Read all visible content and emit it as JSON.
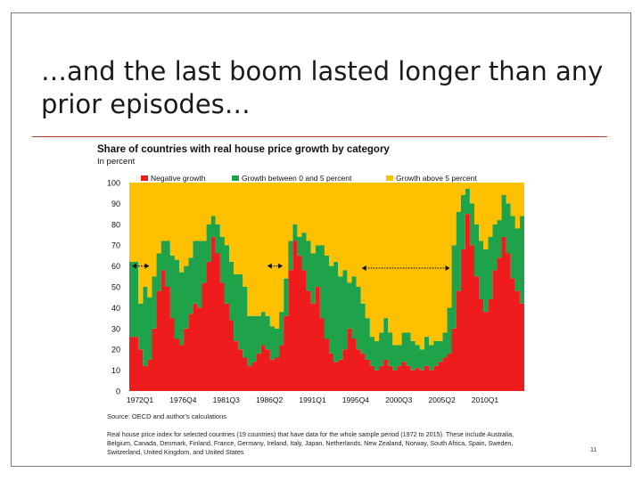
{
  "slide": {
    "title": "…and the last boom lasted longer than any prior episodes…",
    "page_number": "11",
    "source": "Source: OECD and author's calculations",
    "note": "Real house price index for selected countries (19 countries) that have data for the whole sample period (1972 to 2015). These include Australia, Belgium, Canada, Denmark, Finland, France, Germany, Ireland, Italy, Japan, Netherlands, New Zealand, Norway, South Africa, Spain, Sweden, Switzerland, United Kingdom, and United States"
  },
  "colors": {
    "negative": "#ee1c1c",
    "mid": "#1fa34a",
    "high": "#ffc000",
    "rule": "#c0392b"
  },
  "chart_data": {
    "type": "area",
    "title": "Share of countries with real house price growth by category",
    "ylabel": "In percent",
    "ylim": [
      0,
      100
    ],
    "yticks": [
      0,
      10,
      20,
      30,
      40,
      50,
      60,
      70,
      80,
      90,
      100
    ],
    "legend_position": "top",
    "x_tick_labels": [
      "1972Q1",
      "1976Q4",
      "1981Q3",
      "1986Q2",
      "1991Q1",
      "1995Q4",
      "2000Q3",
      "2005Q2",
      "2010Q1"
    ],
    "series": [
      {
        "name": "Negative growth",
        "x": [
          1972.0,
          1973.0,
          1973.5,
          1974.0,
          1974.5,
          1975.0,
          1975.5,
          1976.0,
          1976.5,
          1977.0,
          1977.5,
          1978.0,
          1978.5,
          1979.0,
          1979.5,
          1980.0,
          1980.5,
          1981.0,
          1981.5,
          1982.0,
          1982.5,
          1983.0,
          1983.5,
          1984.0,
          1984.5,
          1985.0,
          1985.5,
          1986.0,
          1986.5,
          1987.0,
          1987.5,
          1988.0,
          1988.5,
          1989.0,
          1989.5,
          1990.0,
          1990.5,
          1991.0,
          1991.5,
          1992.0,
          1992.5,
          1993.0,
          1993.5,
          1994.0,
          1994.5,
          1995.0,
          1995.5,
          1996.0,
          1996.5,
          1997.0,
          1997.5,
          1998.0,
          1998.5,
          1999.0,
          1999.5,
          2000.0,
          2000.5,
          2001.0,
          2001.5,
          2002.0,
          2002.5,
          2003.0,
          2003.5,
          2004.0,
          2004.5,
          2005.0,
          2005.5,
          2006.0,
          2006.5,
          2007.0,
          2007.5,
          2008.0,
          2008.5,
          2009.0,
          2009.5,
          2010.0,
          2010.5,
          2011.0,
          2011.5,
          2012.0,
          2012.5,
          2013.0,
          2013.5,
          2014.0,
          2014.5,
          2015.0
        ],
        "values": [
          26,
          20,
          12,
          15,
          30,
          48,
          58,
          50,
          35,
          25,
          22,
          30,
          37,
          42,
          40,
          52,
          62,
          74,
          66,
          52,
          42,
          34,
          24,
          20,
          16,
          12,
          14,
          18,
          22,
          20,
          15,
          16,
          22,
          36,
          58,
          72,
          65,
          58,
          48,
          42,
          50,
          35,
          25,
          18,
          14,
          15,
          20,
          30,
          25,
          20,
          18,
          15,
          12,
          10,
          12,
          15,
          12,
          10,
          12,
          14,
          12,
          10,
          11,
          10,
          12,
          10,
          12,
          14,
          16,
          18,
          30,
          48,
          68,
          85,
          70,
          55,
          44,
          38,
          44,
          58,
          64,
          74,
          66,
          54,
          48,
          42
        ]
      },
      {
        "name": "Growth between 0 and 5 percent",
        "x": [
          1972.0,
          1973.0,
          1973.5,
          1974.0,
          1974.5,
          1975.0,
          1975.5,
          1976.0,
          1976.5,
          1977.0,
          1977.5,
          1978.0,
          1978.5,
          1979.0,
          1979.5,
          1980.0,
          1980.5,
          1981.0,
          1981.5,
          1982.0,
          1982.5,
          1983.0,
          1983.5,
          1984.0,
          1984.5,
          1985.0,
          1985.5,
          1986.0,
          1986.5,
          1987.0,
          1987.5,
          1988.0,
          1988.5,
          1989.0,
          1989.5,
          1990.0,
          1990.5,
          1991.0,
          1991.5,
          1992.0,
          1992.5,
          1993.0,
          1993.5,
          1994.0,
          1994.5,
          1995.0,
          1995.5,
          1996.0,
          1996.5,
          1997.0,
          1997.5,
          1998.0,
          1998.5,
          1999.0,
          1999.5,
          2000.0,
          2000.5,
          2001.0,
          2001.5,
          2002.0,
          2002.5,
          2003.0,
          2003.5,
          2004.0,
          2004.5,
          2005.0,
          2005.5,
          2006.0,
          2006.5,
          2007.0,
          2007.5,
          2008.0,
          2008.5,
          2009.0,
          2009.5,
          2010.0,
          2010.5,
          2011.0,
          2011.5,
          2012.0,
          2012.5,
          2013.0,
          2013.5,
          2014.0,
          2014.5,
          2015.0
        ],
        "values": [
          36,
          22,
          38,
          30,
          25,
          18,
          14,
          22,
          30,
          38,
          35,
          30,
          27,
          30,
          32,
          20,
          18,
          10,
          14,
          22,
          28,
          28,
          32,
          36,
          34,
          24,
          22,
          18,
          16,
          16,
          16,
          14,
          16,
          18,
          14,
          8,
          9,
          18,
          24,
          24,
          20,
          35,
          40,
          42,
          48,
          40,
          38,
          22,
          30,
          30,
          24,
          20,
          14,
          14,
          16,
          20,
          16,
          12,
          10,
          14,
          16,
          14,
          11,
          10,
          14,
          12,
          12,
          10,
          12,
          22,
          40,
          38,
          26,
          12,
          20,
          25,
          28,
          30,
          30,
          22,
          18,
          20,
          24,
          30,
          30,
          42
        ]
      },
      {
        "name": "Growth above 5 percent",
        "x": [
          1972.0,
          1973.0,
          1973.5,
          1974.0,
          1974.5,
          1975.0,
          1975.5,
          1976.0,
          1976.5,
          1977.0,
          1977.5,
          1978.0,
          1978.5,
          1979.0,
          1979.5,
          1980.0,
          1980.5,
          1981.0,
          1981.5,
          1982.0,
          1982.5,
          1983.0,
          1983.5,
          1984.0,
          1984.5,
          1985.0,
          1985.5,
          1986.0,
          1986.5,
          1987.0,
          1987.5,
          1988.0,
          1988.5,
          1989.0,
          1989.5,
          1990.0,
          1990.5,
          1991.0,
          1991.5,
          1992.0,
          1992.5,
          1993.0,
          1993.5,
          1994.0,
          1994.5,
          1995.0,
          1995.5,
          1996.0,
          1996.5,
          1997.0,
          1997.5,
          1998.0,
          1998.5,
          1999.0,
          1999.5,
          2000.0,
          2000.5,
          2001.0,
          2001.5,
          2002.0,
          2002.5,
          2003.0,
          2003.5,
          2004.0,
          2004.5,
          2005.0,
          2005.5,
          2006.0,
          2006.5,
          2007.0,
          2007.5,
          2008.0,
          2008.5,
          2009.0,
          2009.5,
          2010.0,
          2010.5,
          2011.0,
          2011.5,
          2012.0,
          2012.5,
          2013.0,
          2013.5,
          2014.0,
          2014.5,
          2015.0
        ],
        "values": [
          38,
          58,
          50,
          55,
          45,
          34,
          28,
          28,
          35,
          37,
          43,
          40,
          36,
          28,
          28,
          28,
          20,
          16,
          20,
          26,
          30,
          38,
          44,
          44,
          50,
          64,
          64,
          64,
          62,
          64,
          69,
          70,
          62,
          46,
          28,
          20,
          26,
          24,
          28,
          34,
          30,
          30,
          35,
          40,
          38,
          45,
          42,
          48,
          45,
          50,
          58,
          65,
          74,
          76,
          72,
          65,
          72,
          78,
          78,
          72,
          72,
          76,
          78,
          80,
          74,
          78,
          76,
          76,
          72,
          60,
          30,
          14,
          6,
          3,
          10,
          20,
          28,
          32,
          26,
          20,
          18,
          6,
          10,
          16,
          22,
          16
        ]
      }
    ],
    "annotations": [
      {
        "type": "double-arrow",
        "x_start": 1972.3,
        "x_end": 1974.2,
        "y": 60
      },
      {
        "type": "double-arrow",
        "x_start": 1987.2,
        "x_end": 1988.9,
        "y": 60
      },
      {
        "type": "double-arrow",
        "x_start": 1997.6,
        "x_end": 2007.3,
        "y": 59
      }
    ]
  }
}
